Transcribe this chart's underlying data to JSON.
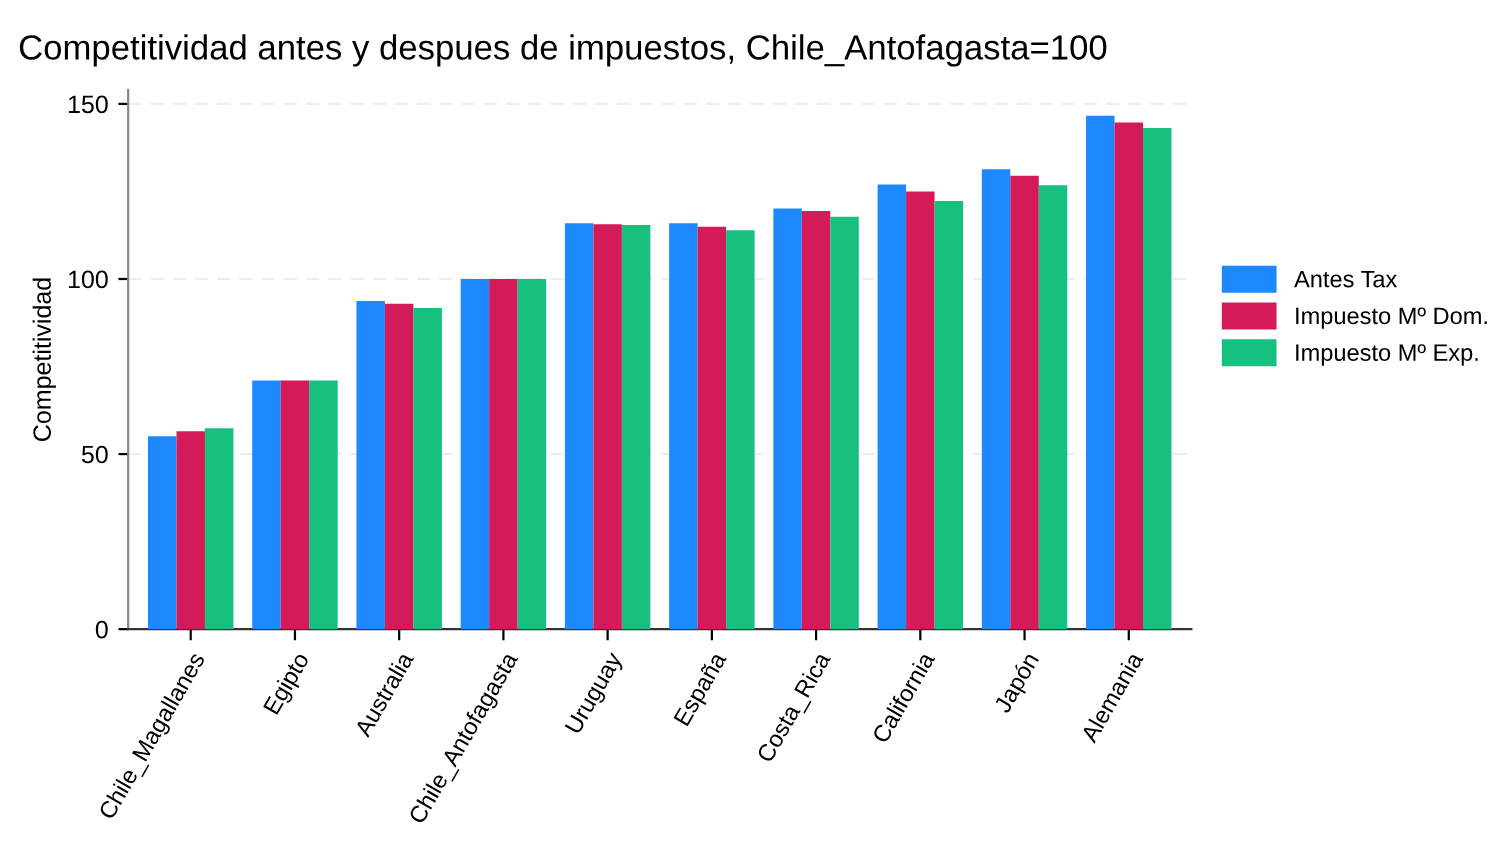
{
  "chart_data": {
    "type": "bar",
    "title": "Competitividad antes y despues de impuestos, Chile_Antofagasta=100",
    "ylabel": "Competitividad",
    "categories": [
      "Chile_Magallanes",
      "Egipto",
      "Australia",
      "Chile_Antofagasta",
      "Uruguay",
      "España",
      "Costa_Rica",
      "California",
      "Japón",
      "Alemania"
    ],
    "series": [
      {
        "name": "Antes Tax",
        "color": "#1e88ff",
        "values": [
          55.1,
          71.0,
          93.7,
          100,
          115.9,
          115.9,
          120.1,
          127.0,
          131.3,
          146.6
        ]
      },
      {
        "name": "Impuesto Mº Dom.",
        "color": "#d41b5a",
        "values": [
          56.5,
          71.0,
          92.9,
          100,
          115.6,
          114.9,
          119.4,
          125.0,
          129.5,
          144.7
        ]
      },
      {
        "name": "Impuesto Mº Exp.",
        "color": "#17c07f",
        "values": [
          57.4,
          71.0,
          91.7,
          100,
          115.4,
          113.9,
          117.8,
          122.3,
          126.8,
          143.1
        ]
      }
    ],
    "ylim": [
      0,
      154
    ],
    "yticks": [
      0,
      50,
      100,
      150
    ],
    "grid": "y",
    "legend": "right"
  }
}
